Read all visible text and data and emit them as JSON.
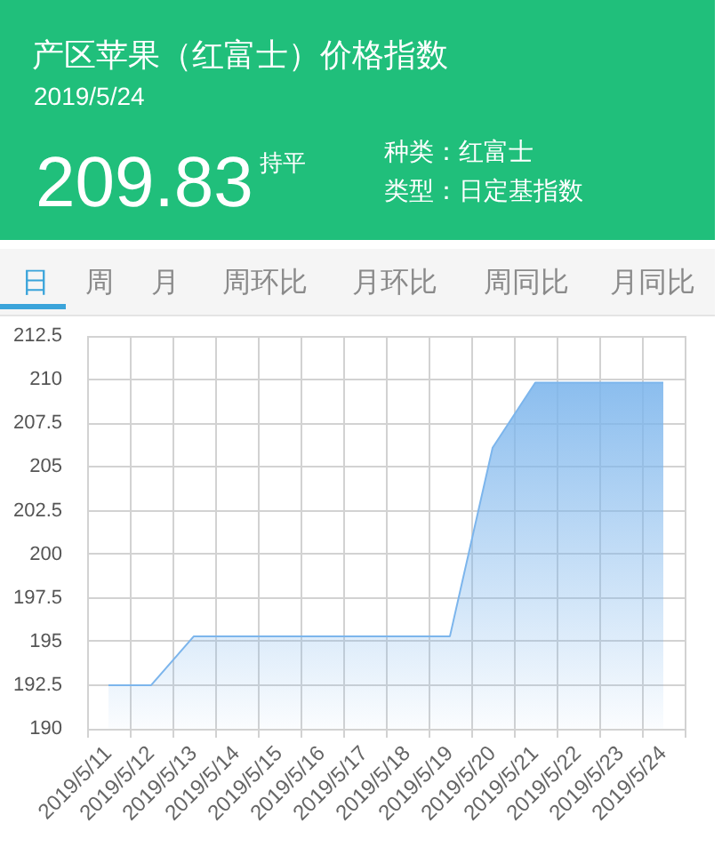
{
  "chart_data": {
    "type": "area",
    "title": "产区苹果（红富士）价格指数",
    "subtitle": "2019/5/24",
    "annotations": [
      "209.83",
      "持平",
      "种类：红富士",
      "类型：日定基指数",
      "日",
      "周",
      "月",
      "周环比",
      "月环比",
      "周同比",
      "月同比"
    ],
    "categories": [
      "2019/5/11",
      "2019/5/12",
      "2019/5/13",
      "2019/5/14",
      "2019/5/15",
      "2019/5/16",
      "2019/5/17",
      "2019/5/18",
      "2019/5/19",
      "2019/5/20",
      "2019/5/21",
      "2019/5/22",
      "2019/5/23",
      "2019/5/24"
    ],
    "values": [
      192.5,
      192.5,
      195.3,
      195.3,
      195.3,
      195.3,
      195.3,
      195.3,
      195.3,
      206.1,
      209.83,
      209.83,
      209.83,
      209.83
    ],
    "color": "#7cb5ec",
    "ylim": [
      190,
      212.5
    ],
    "yticks": [
      190,
      192.5,
      195,
      197.5,
      200,
      202.5,
      205,
      207.5,
      210,
      212.5
    ],
    "grid": true
  }
}
